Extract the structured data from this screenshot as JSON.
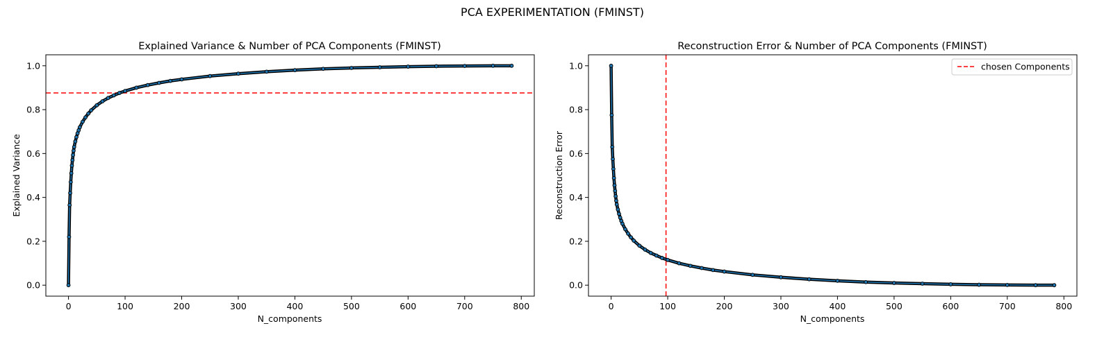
{
  "figure": {
    "suptitle": "PCA EXPERIMENTATION (FMINST)"
  },
  "chart_data": [
    {
      "type": "line",
      "title": "Explained Variance & Number of PCA Components (FMINST)",
      "xlabel": "N_components",
      "ylabel": "Explained Variance",
      "xlim": [
        -40,
        823
      ],
      "ylim": [
        -0.05,
        1.05
      ],
      "xticks": [
        0,
        100,
        200,
        300,
        400,
        500,
        600,
        700,
        800
      ],
      "yticks": [
        0.0,
        0.2,
        0.4,
        0.6,
        0.8,
        1.0
      ],
      "grid": false,
      "series": [
        {
          "curve": "explained_variance",
          "color": "#1f77b4",
          "marker_color": "#000000",
          "x": [
            0,
            1,
            2,
            3,
            4,
            5,
            6,
            7,
            8,
            9,
            10,
            12,
            14,
            16,
            18,
            20,
            25,
            30,
            35,
            40,
            50,
            60,
            70,
            80,
            90,
            100,
            120,
            140,
            160,
            180,
            200,
            250,
            300,
            350,
            400,
            450,
            500,
            550,
            600,
            650,
            700,
            750,
            783
          ],
          "y": [
            0.0,
            0.22,
            0.365,
            0.42,
            0.47,
            0.51,
            0.545,
            0.57,
            0.593,
            0.613,
            0.63,
            0.655,
            0.675,
            0.692,
            0.706,
            0.72,
            0.745,
            0.765,
            0.782,
            0.797,
            0.82,
            0.838,
            0.853,
            0.865,
            0.876,
            0.885,
            0.9,
            0.912,
            0.922,
            0.931,
            0.938,
            0.953,
            0.964,
            0.973,
            0.98,
            0.986,
            0.99,
            0.993,
            0.996,
            0.998,
            0.999,
            1.0,
            1.0
          ]
        }
      ],
      "reference_lines": [
        {
          "orientation": "horizontal",
          "value": 0.876,
          "color": "#ff0000",
          "style": "dashed"
        }
      ]
    },
    {
      "type": "line",
      "title": "Reconstruction Error & Number of PCA Components (FMINST)",
      "xlabel": "N_components",
      "ylabel": "Reconstruction Error",
      "xlim": [
        -40,
        823
      ],
      "ylim": [
        -0.05,
        1.05
      ],
      "xticks": [
        0,
        100,
        200,
        300,
        400,
        500,
        600,
        700,
        800
      ],
      "yticks": [
        0.0,
        0.2,
        0.4,
        0.6,
        0.8,
        1.0
      ],
      "grid": false,
      "legend": {
        "position": "top-right",
        "entries": [
          "chosen Components"
        ]
      },
      "series": [
        {
          "curve": "reconstruction_error",
          "color": "#1f77b4",
          "marker_color": "#000000",
          "x": [
            0,
            1,
            2,
            3,
            4,
            5,
            6,
            7,
            8,
            9,
            10,
            12,
            14,
            16,
            18,
            20,
            25,
            30,
            35,
            40,
            50,
            60,
            70,
            80,
            90,
            100,
            120,
            140,
            160,
            180,
            200,
            250,
            300,
            350,
            400,
            450,
            500,
            550,
            600,
            650,
            700,
            750,
            783
          ],
          "y": [
            1.0,
            0.775,
            0.63,
            0.575,
            0.53,
            0.488,
            0.455,
            0.43,
            0.405,
            0.385,
            0.368,
            0.345,
            0.325,
            0.308,
            0.293,
            0.28,
            0.255,
            0.235,
            0.218,
            0.203,
            0.18,
            0.162,
            0.147,
            0.135,
            0.124,
            0.115,
            0.1,
            0.088,
            0.078,
            0.069,
            0.062,
            0.047,
            0.036,
            0.027,
            0.02,
            0.014,
            0.01,
            0.007,
            0.004,
            0.002,
            0.001,
            0.0,
            0.0
          ]
        }
      ],
      "reference_lines": [
        {
          "orientation": "vertical",
          "value": 97,
          "color": "#ff0000",
          "style": "dashed",
          "label": "chosen Components"
        }
      ]
    }
  ]
}
